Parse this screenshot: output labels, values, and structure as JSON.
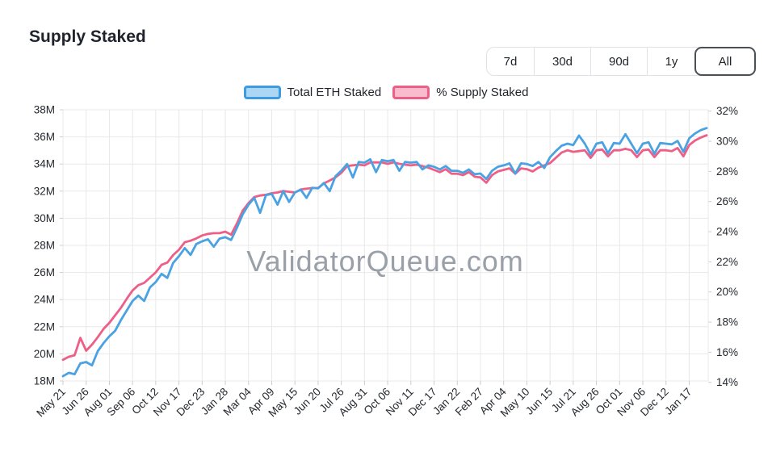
{
  "page": {
    "title": "Supply Staked"
  },
  "watermark": "ValidatorQueue.com",
  "time_range": {
    "buttons": [
      {
        "label": "7d",
        "active": false
      },
      {
        "label": "30d",
        "active": false
      },
      {
        "label": "90d",
        "active": false
      },
      {
        "label": "1y",
        "active": false
      },
      {
        "label": "All",
        "active": true
      }
    ]
  },
  "legend": [
    {
      "label": "Total ETH Staked",
      "border": "#3e9bdf",
      "fill": "#abd7f5"
    },
    {
      "label": "% Supply Staked",
      "border": "#ee5f87",
      "fill": "#f9bcce"
    }
  ],
  "chart_data": {
    "type": "line",
    "title": "Supply Staked",
    "grid": true,
    "legend_position": "top",
    "x_labels": [
      "May 21",
      "Jun 26",
      "Aug 01",
      "Sep 06",
      "Oct 12",
      "Nov 17",
      "Dec 23",
      "Jan 28",
      "Mar 04",
      "Apr 09",
      "May 15",
      "Jun 20",
      "Jul 26",
      "Aug 31",
      "Oct 06",
      "Nov 11",
      "Dec 17",
      "Jan 22",
      "Feb 27",
      "Apr 04",
      "May 10",
      "Jun 15",
      "Jul 21",
      "Aug 26",
      "Oct 01",
      "Nov 06",
      "Dec 12",
      "Jan 17"
    ],
    "points_per_tick_interval": 4,
    "left_axis": {
      "label": "Total ETH Staked",
      "unit": "M",
      "min": 18,
      "max": 38,
      "step": 2,
      "tick_labels": [
        "18M",
        "20M",
        "22M",
        "24M",
        "26M",
        "28M",
        "30M",
        "32M",
        "34M",
        "36M",
        "38M"
      ]
    },
    "right_axis": {
      "label": "% Supply Staked",
      "unit": "%",
      "min": 14,
      "max": 32,
      "step": 2,
      "tick_labels": [
        "14%",
        "16%",
        "18%",
        "20%",
        "22%",
        "24%",
        "26%",
        "28%",
        "30%",
        "32%"
      ]
    },
    "series": [
      {
        "name": "Total ETH Staked",
        "axis": "left",
        "color": "#4aa2e2",
        "values": [
          18.35,
          18.6,
          18.5,
          19.3,
          19.4,
          19.15,
          20.2,
          20.8,
          21.3,
          21.7,
          22.5,
          23.2,
          23.9,
          24.3,
          23.9,
          24.9,
          25.3,
          25.9,
          25.6,
          26.7,
          27.2,
          27.8,
          27.3,
          28.1,
          28.3,
          28.45,
          27.9,
          28.5,
          28.6,
          28.4,
          29.3,
          30.3,
          31.0,
          31.5,
          30.4,
          31.7,
          31.8,
          31.0,
          32.0,
          31.2,
          31.9,
          32.1,
          31.5,
          32.25,
          32.2,
          32.6,
          32.0,
          33.1,
          33.5,
          34.0,
          33.0,
          34.15,
          34.1,
          34.35,
          33.4,
          34.3,
          34.2,
          34.3,
          33.5,
          34.15,
          34.1,
          34.15,
          33.6,
          33.9,
          33.8,
          33.6,
          33.85,
          33.5,
          33.5,
          33.35,
          33.6,
          33.25,
          33.3,
          32.9,
          33.5,
          33.8,
          33.9,
          34.05,
          33.3,
          34.05,
          34.0,
          33.85,
          34.15,
          33.7,
          34.5,
          34.95,
          35.35,
          35.5,
          35.4,
          36.1,
          35.5,
          34.7,
          35.5,
          35.6,
          34.8,
          35.55,
          35.5,
          36.2,
          35.5,
          34.8,
          35.5,
          35.6,
          34.75,
          35.55,
          35.5,
          35.45,
          35.7,
          34.9,
          35.9,
          36.25,
          36.5,
          36.65
        ]
      },
      {
        "name": "% Supply Staked",
        "axis": "right",
        "color": "#ee5f87",
        "values": [
          15.5,
          15.7,
          15.8,
          16.95,
          16.1,
          16.5,
          17.0,
          17.55,
          17.95,
          18.45,
          18.95,
          19.55,
          20.1,
          20.45,
          20.6,
          20.95,
          21.3,
          21.8,
          21.95,
          22.45,
          22.8,
          23.3,
          23.4,
          23.55,
          23.75,
          23.85,
          23.9,
          23.9,
          24.0,
          23.8,
          24.55,
          25.4,
          25.9,
          26.3,
          26.4,
          26.45,
          26.55,
          26.6,
          26.7,
          26.65,
          26.6,
          26.8,
          26.85,
          26.9,
          26.9,
          27.2,
          27.4,
          27.6,
          27.9,
          28.35,
          28.4,
          28.45,
          28.4,
          28.6,
          28.6,
          28.6,
          28.5,
          28.6,
          28.5,
          28.45,
          28.4,
          28.45,
          28.35,
          28.25,
          28.1,
          27.95,
          28.15,
          27.85,
          27.85,
          27.75,
          27.95,
          27.65,
          27.6,
          27.25,
          27.75,
          28.0,
          28.1,
          28.2,
          27.85,
          28.2,
          28.15,
          28.0,
          28.25,
          28.4,
          28.55,
          28.9,
          29.25,
          29.4,
          29.3,
          29.35,
          29.4,
          28.9,
          29.4,
          29.45,
          29.0,
          29.4,
          29.4,
          29.5,
          29.4,
          28.95,
          29.4,
          29.45,
          28.95,
          29.4,
          29.4,
          29.35,
          29.55,
          29.0,
          29.75,
          30.05,
          30.25,
          30.4
        ]
      }
    ]
  }
}
